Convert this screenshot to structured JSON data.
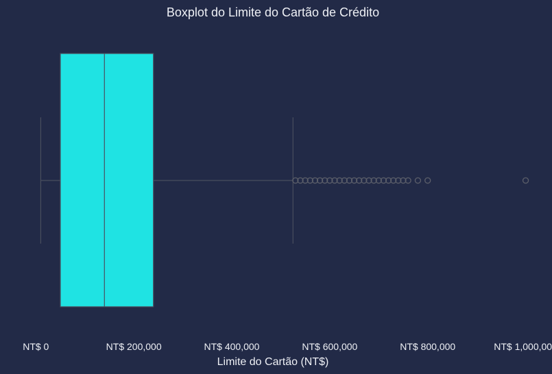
{
  "chart_data": {
    "type": "boxplot",
    "title": "Boxplot do Limite do Cartão de Crédito",
    "xlabel": "Limite do Cartão (NT$)",
    "ylabel": "",
    "xlim": [
      -20000,
      1030000
    ],
    "ticks": [
      {
        "value": 0,
        "label": "NT$ 0"
      },
      {
        "value": 200000,
        "label": "NT$ 200,000"
      },
      {
        "value": 400000,
        "label": "NT$ 400,000"
      },
      {
        "value": 600000,
        "label": "NT$ 600,000"
      },
      {
        "value": 800000,
        "label": "NT$ 800,000"
      },
      {
        "value": 1000000,
        "label": "NT$ 1,000,000"
      }
    ],
    "box": {
      "whisker_low": 10000,
      "q1": 50000,
      "median": 140000,
      "q3": 240000,
      "whisker_high": 525000
    },
    "outliers": [
      530000,
      540000,
      550000,
      560000,
      570000,
      580000,
      590000,
      600000,
      610000,
      620000,
      630000,
      640000,
      650000,
      660000,
      670000,
      680000,
      690000,
      700000,
      710000,
      720000,
      730000,
      740000,
      750000,
      760000,
      780000,
      800000,
      1000000
    ],
    "grid": false,
    "colors": {
      "background": "#222a47",
      "box_fill": "#1fe3e3",
      "line": "#4a4f5e",
      "outlier": "#5c5f6a",
      "text": "#eef0f5"
    }
  }
}
